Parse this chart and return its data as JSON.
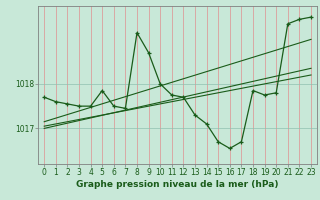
{
  "title": "Graphe pression niveau de la mer (hPa)",
  "background_color": "#c8e8d8",
  "plot_bg_color": "#c8e8d8",
  "grid_color_v": "#e8a0a0",
  "grid_color_h": "#a0c8b8",
  "line_color": "#1a5c1a",
  "text_color": "#1a5c1a",
  "hours": [
    0,
    1,
    2,
    3,
    4,
    5,
    6,
    7,
    8,
    9,
    10,
    11,
    12,
    13,
    14,
    15,
    16,
    17,
    18,
    19,
    20,
    21,
    22,
    23
  ],
  "pressure": [
    1017.7,
    1017.6,
    1017.55,
    1017.5,
    1017.5,
    1017.85,
    1017.5,
    1017.45,
    1019.15,
    1018.7,
    1018.0,
    1017.75,
    1017.7,
    1017.3,
    1017.1,
    1016.7,
    1016.55,
    1016.7,
    1017.85,
    1017.75,
    1017.8,
    1019.35,
    1019.45,
    1019.5
  ],
  "trend_line1_x": [
    0,
    23
  ],
  "trend_line1_y": [
    1017.15,
    1019.0
  ],
  "trend_line2_x": [
    0,
    23
  ],
  "trend_line2_y": [
    1017.05,
    1018.2
  ],
  "trend_line3_x": [
    0,
    23
  ],
  "trend_line3_y": [
    1017.0,
    1018.35
  ],
  "ylim": [
    1016.2,
    1019.75
  ],
  "yticks": [
    1017,
    1018
  ],
  "xlim": [
    -0.5,
    23.5
  ],
  "xticks": [
    0,
    1,
    2,
    3,
    4,
    5,
    6,
    7,
    8,
    9,
    10,
    11,
    12,
    13,
    14,
    15,
    16,
    17,
    18,
    19,
    20,
    21,
    22,
    23
  ],
  "fontsize_title": 6.5,
  "fontsize_ticks": 5.5
}
